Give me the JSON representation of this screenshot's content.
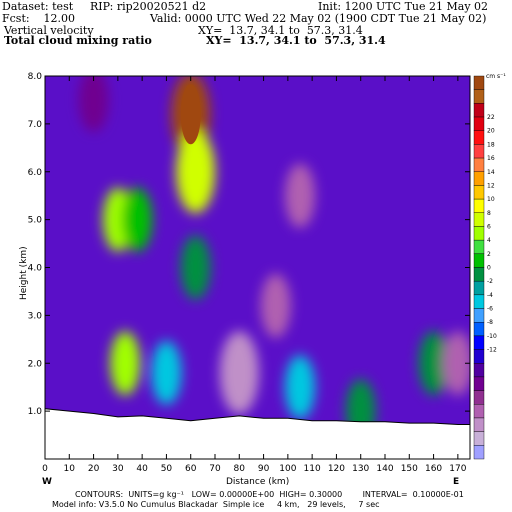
{
  "header": {
    "dataset": "Dataset: test",
    "rip": "RIP: rip20020521 d2",
    "init": "Init: 1200 UTC Tue 21 May 02",
    "fcst": "Fcst:    12.00",
    "valid": "Valid: 0000 UTC Wed 22 May 02 (1900 CDT Tue 21 May 02)",
    "field1": "Vertical velocity",
    "field1_xy": "XY=  13.7, 34.1 to  57.3, 31.4",
    "field2": "Total cloud mixing ratio",
    "field2_xy": "XY=  13.7, 34.1 to  57.3, 31.4"
  },
  "footer": {
    "contours": "CONTOURS:  UNITS=g kg⁻¹   LOW= 0.00000E+00  HIGH= 0.30000        INTERVAL=  0.10000E-01",
    "model": "Model info: V3.5.0 No Cumulus Blackadar  Simple ice     4 km,   29 levels,     7 sec"
  },
  "colorbar": {
    "unit": "cm s⁻¹",
    "labels": [
      "22",
      "20",
      "18",
      "16",
      "14",
      "12",
      "10",
      "8",
      "6",
      "4",
      "2",
      "0",
      "-2",
      "-4",
      "-6",
      "-8",
      "-10",
      "-12"
    ],
    "colors": [
      "#a04810",
      "#b06018",
      "#c00018",
      "#e00010",
      "#ff1010",
      "#ff4040",
      "#ff8040",
      "#ffa000",
      "#ffc800",
      "#ffff00",
      "#d0ff00",
      "#a0ff00",
      "#40e040",
      "#00c000",
      "#009040",
      "#00a0a0",
      "#00c8e0",
      "#40a0ff",
      "#0060ff",
      "#0000ff",
      "#2000d0",
      "#5000a0",
      "#700090",
      "#903090",
      "#b060b0",
      "#c090c8",
      "#c8b0d8",
      "#a0a0ff"
    ]
  },
  "chart_data": {
    "type": "heatmap",
    "title": "Vertical velocity",
    "xlabel": "Distance (km)",
    "ylabel": "Height (km)",
    "xlim": [
      0,
      175
    ],
    "ylim": [
      0,
      8
    ],
    "x_ticks": [
      "0",
      "10",
      "20",
      "30",
      "40",
      "50",
      "60",
      "70",
      "80",
      "90",
      "100",
      "110",
      "120",
      "130",
      "140",
      "150",
      "160",
      "170"
    ],
    "y_ticks": [
      "1.0",
      "2.0",
      "3.0",
      "4.0",
      "5.0",
      "6.0",
      "7.0",
      "8.0"
    ],
    "x_endpoints": {
      "left": "W",
      "right": "E"
    },
    "units": "cm s⁻¹",
    "value_range": [
      -12,
      22
    ],
    "terrain_height_km": [
      [
        0,
        1.05
      ],
      [
        10,
        1.0
      ],
      [
        20,
        0.95
      ],
      [
        30,
        0.88
      ],
      [
        40,
        0.9
      ],
      [
        50,
        0.85
      ],
      [
        60,
        0.8
      ],
      [
        70,
        0.85
      ],
      [
        80,
        0.9
      ],
      [
        90,
        0.85
      ],
      [
        100,
        0.85
      ],
      [
        110,
        0.8
      ],
      [
        120,
        0.8
      ],
      [
        130,
        0.78
      ],
      [
        140,
        0.78
      ],
      [
        150,
        0.75
      ],
      [
        160,
        0.75
      ],
      [
        170,
        0.72
      ],
      [
        175,
        0.72
      ]
    ],
    "features": [
      {
        "x": 60,
        "y": 7.2,
        "value": 22
      },
      {
        "x": 62,
        "y": 6.0,
        "value": 10
      },
      {
        "x": 30,
        "y": 5.0,
        "value": 8
      },
      {
        "x": 38,
        "y": 5.0,
        "value": 6
      },
      {
        "x": 33,
        "y": 2.0,
        "value": 8
      },
      {
        "x": 62,
        "y": 4.0,
        "value": 4
      },
      {
        "x": 50,
        "y": 1.8,
        "value": 2
      },
      {
        "x": 105,
        "y": 1.5,
        "value": 2
      },
      {
        "x": 130,
        "y": 1.0,
        "value": 4
      },
      {
        "x": 160,
        "y": 2.0,
        "value": 4
      },
      {
        "x": 105,
        "y": 5.5,
        "value": -8
      },
      {
        "x": 80,
        "y": 1.8,
        "value": -10
      },
      {
        "x": 95,
        "y": 3.2,
        "value": -8
      },
      {
        "x": 170,
        "y": 2.0,
        "value": -8
      },
      {
        "x": 20,
        "y": 7.5,
        "value": -6
      }
    ]
  }
}
